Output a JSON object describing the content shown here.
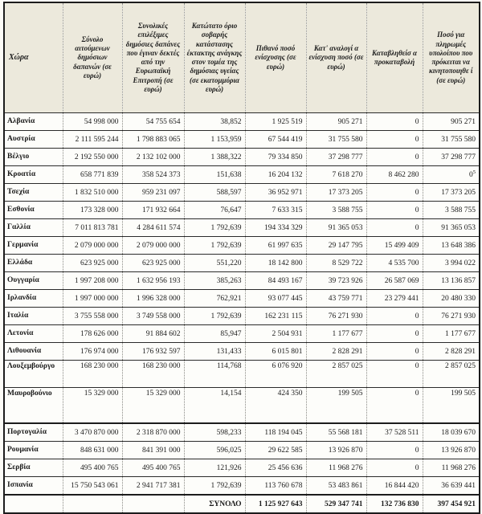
{
  "table": {
    "headers": [
      "Χώρα",
      "Σύνολο αιτούμενων δημόσιων δαπανών (σε ευρώ)",
      "Συνολικές επιλέξιμες δημόσιες δαπάνες που έγιναν δεκτές από την Ευρωπαϊκή Επιτροπή (σε ευρώ)",
      "Κατώτατο όριο σοβαρής κατάστασης έκτακτης ανάγκης στον τομέα της δημόσιας υγείας (σε εκατομμύρια ευρώ)",
      "Πιθανό ποσό ενίσχυσης (σε ευρώ)",
      "Κατ' αναλογί α ενίσχυση ποσό (σε ευρώ)",
      "Καταβληθείσ α προκαταβολή",
      "Ποσό για πληρωμές υπολοίπου που πρόκειται να κινητοποιηθε ί (σε ευρώ)"
    ],
    "rows": [
      {
        "country": "Αλβανία",
        "values": [
          "54 998 000",
          "54 755 654",
          "38,852",
          "1 925 519",
          "905 271",
          "0",
          "905 271"
        ]
      },
      {
        "country": "Αυστρία",
        "values": [
          "2 111 595 244",
          "1 798 883 065",
          "1 153,959",
          "67 544 419",
          "31 755 580",
          "0",
          "31 755 580"
        ]
      },
      {
        "country": "Βέλγιο",
        "values": [
          "2 192 550 000",
          "2 132 102 000",
          "1 388,322",
          "79 334 850",
          "37 298 777",
          "0",
          "37 298 777"
        ]
      },
      {
        "country": "Κροατία",
        "values": [
          "658 771 839",
          "358 524 373",
          "151,638",
          "16 204 132",
          "7 618 270",
          "8 462 280",
          "0⁵"
        ]
      },
      {
        "country": "Τσεχία",
        "values": [
          "1 832 510 000",
          "959 231 097",
          "588,597",
          "36 952 971",
          "17 373 205",
          "0",
          "17 373 205"
        ]
      },
      {
        "country": "Εσθονία",
        "values": [
          "173 328 000",
          "171 932 664",
          "76,647",
          "7 633 315",
          "3 588 755",
          "0",
          "3 588 755"
        ]
      },
      {
        "country": "Γαλλία",
        "values": [
          "7 011 813 781",
          "4 284 611 574",
          "1 792,639",
          "194 334 329",
          "91 365 053",
          "0",
          "91 365 053"
        ]
      },
      {
        "country": "Γερμανία",
        "values": [
          "2 079 000 000",
          "2 079 000 000",
          "1 792,639",
          "61 997 635",
          "29 147 795",
          "15 499 409",
          "13 648 386"
        ]
      },
      {
        "country": "Ελλάδα",
        "values": [
          "623 925 000",
          "623 925 000",
          "551,220",
          "18 142 800",
          "8 529 722",
          "4 535 700",
          "3 994 022"
        ]
      },
      {
        "country": "Ουγγαρία",
        "values": [
          "1 997 208 000",
          "1 632 956 193",
          "385,263",
          "84 493 167",
          "39 723 926",
          "26 587 069",
          "13 136 857"
        ]
      },
      {
        "country": "Ιρλανδία",
        "values": [
          "1 997 000 000",
          "1 996 328 000",
          "762,921",
          "93 077 445",
          "43 759 771",
          "23 279 441",
          "20 480 330"
        ]
      },
      {
        "country": "Ιταλία",
        "values": [
          "3 755 558 000",
          "3 749 558 000",
          "1 792,639",
          "162 231 115",
          "76 271 930",
          "0",
          "76 271 930"
        ]
      },
      {
        "country": "Λετονία",
        "values": [
          "178 626 000",
          "91 884 602",
          "85,947",
          "2 504 931",
          "1 177 677",
          "0",
          "1 177 677"
        ]
      },
      {
        "country": "Λιθουανία",
        "values": [
          "176 974 000",
          "176 932 597",
          "131,433",
          "6 015 801",
          "2 828 291",
          "0",
          "2 828 291"
        ]
      },
      {
        "country": "Λουξεμβούργο",
        "values": [
          "168 230 000",
          "168 230 000",
          "114,768",
          "6 076 920",
          "2 857 025",
          "0",
          "2 857 025"
        ]
      },
      {
        "country": "Μαυροβούνιο",
        "values": [
          "15 329 000",
          "15 329 000",
          "14,154",
          "424 350",
          "199 505",
          "0",
          "199 505"
        ]
      },
      {
        "country": "Πορτογαλία",
        "values": [
          "3 470 870 000",
          "2 318 870 000",
          "598,233",
          "118 194 045",
          "55 568 181",
          "37 528 511",
          "18 039 670"
        ]
      },
      {
        "country": "Ρουμανία",
        "values": [
          "848 631 000",
          "841 391 000",
          "596,025",
          "29 622 585",
          "13 926 870",
          "0",
          "13 926 870"
        ]
      },
      {
        "country": "Σερβία",
        "values": [
          "495 400 765",
          "495 400 765",
          "121,926",
          "25 456 636",
          "11 968 276",
          "0",
          "11 968 276"
        ]
      },
      {
        "country": "Ισπανία",
        "values": [
          "15 750 543 061",
          "2 941 717 381",
          "1 792,639",
          "113 760 678",
          "53 483 861",
          "16 844 420",
          "36 639 441"
        ]
      }
    ],
    "total_row": {
      "label": "ΣΥΝΟΛΟ",
      "values": [
        "1 125 927 643",
        "529 347 741",
        "132 736 830",
        "397 454 921"
      ]
    },
    "colors": {
      "header_bg": "#ece9dc",
      "body_bg": "#fdfdfa",
      "border_dark": "#1c1c1c"
    }
  }
}
